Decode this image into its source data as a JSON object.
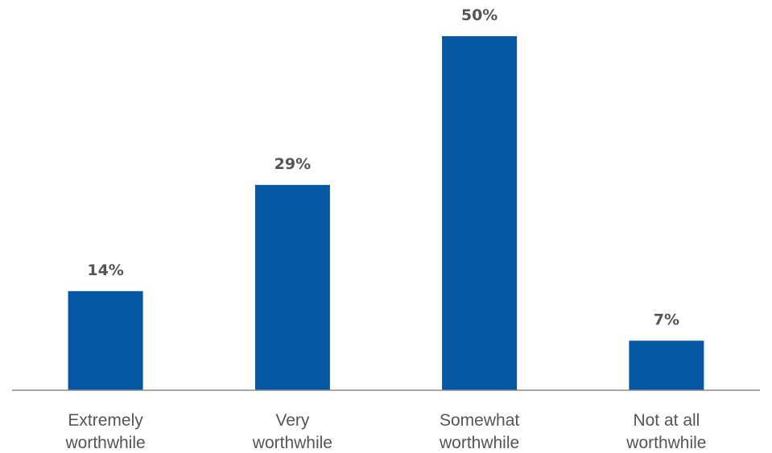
{
  "chart_data": {
    "type": "bar",
    "categories": [
      [
        "Extremely",
        "worthwhile"
      ],
      [
        "Very",
        "worthwhile"
      ],
      [
        "Somewhat",
        "worthwhile"
      ],
      [
        "Not at all",
        "worthwhile"
      ]
    ],
    "values": [
      14,
      29,
      50,
      7
    ],
    "value_labels": [
      "14%",
      "29%",
      "50%",
      "7%"
    ],
    "title": "",
    "xlabel": "",
    "ylabel": "",
    "ylim": [
      0,
      50
    ],
    "grid": false,
    "legend": "none",
    "bar_color": "#0557a3",
    "label_color": "#555555",
    "axis_color": "#8a8a8a"
  }
}
